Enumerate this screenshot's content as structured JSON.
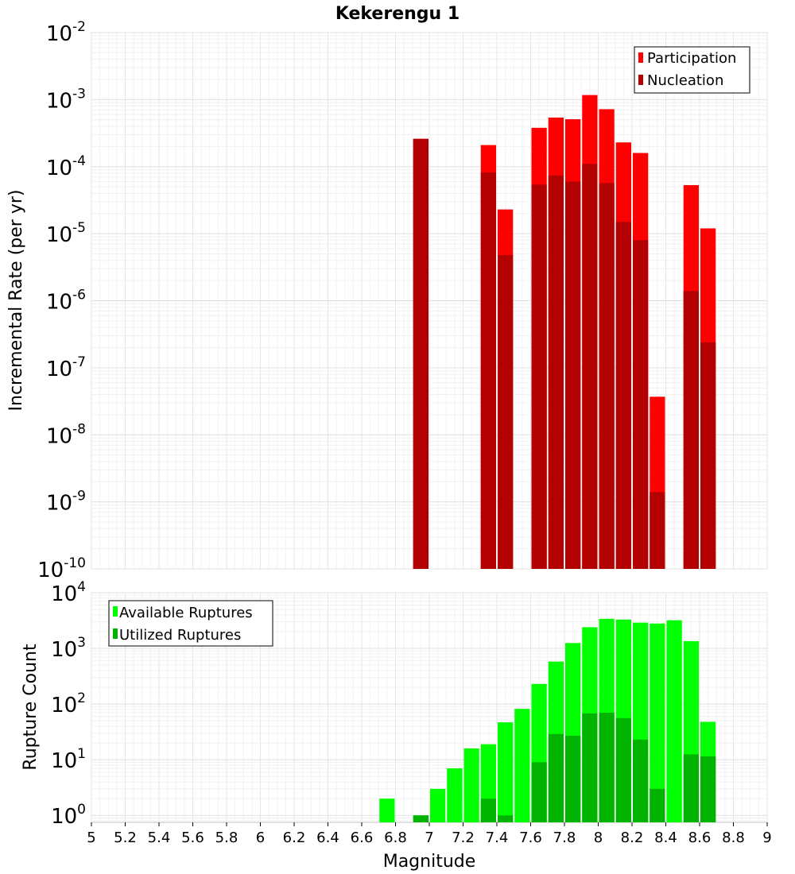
{
  "chart_data": [
    {
      "type": "bar",
      "title": "Kekerengu 1",
      "ylabel": "Incremental Rate (per yr)",
      "xlabel": "",
      "xlim": [
        5,
        9
      ],
      "ylim": [
        1e-10,
        0.01
      ],
      "yscale": "log",
      "ytick_exponents": [
        "-10",
        "-9",
        "-8",
        "-7",
        "-6",
        "-5",
        "-4",
        "-3",
        "-2"
      ],
      "ytick_base": "10",
      "grid": true,
      "legend_position": "top-right",
      "bar_width": 0.1,
      "series": [
        {
          "name": "Participation",
          "color": "#ff0000",
          "x": [
            6.95,
            7.35,
            7.45,
            7.65,
            7.75,
            7.85,
            7.95,
            8.05,
            8.15,
            8.25,
            8.35,
            8.55,
            8.65
          ],
          "values": [
            0.00026,
            0.00021,
            2.3e-05,
            0.00038,
            0.00054,
            0.00051,
            0.00117,
            0.00072,
            0.00023,
            0.00016,
            3.7e-08,
            5.3e-05,
            1.2e-05
          ]
        },
        {
          "name": "Nucleation",
          "color": "#b30000",
          "x": [
            6.95,
            7.35,
            7.45,
            7.65,
            7.75,
            7.85,
            7.95,
            8.05,
            8.15,
            8.25,
            8.35,
            8.55,
            8.65
          ],
          "values": [
            0.00026,
            8.2e-05,
            4.8e-06,
            5.4e-05,
            7.4e-05,
            6e-05,
            0.00011,
            5.7e-05,
            1.5e-05,
            8e-06,
            1.4e-09,
            1.4e-06,
            2.4e-07
          ]
        }
      ]
    },
    {
      "type": "bar",
      "title": "",
      "ylabel": "Rupture Count",
      "xlabel": "Magnitude",
      "xlim": [
        5,
        9
      ],
      "ylim": [
        0.75,
        10000
      ],
      "yscale": "log",
      "ytick_exponents": [
        "0",
        "1",
        "2",
        "3",
        "4"
      ],
      "ytick_base": "10",
      "xticks": [
        "5",
        "5.2",
        "5.4",
        "5.6",
        "5.8",
        "6",
        "6.2",
        "6.4",
        "6.6",
        "6.8",
        "7",
        "7.2",
        "7.4",
        "7.6",
        "7.8",
        "8",
        "8.2",
        "8.4",
        "8.6",
        "8.8",
        "9"
      ],
      "grid": true,
      "legend_position": "top-left",
      "bar_width": 0.1,
      "series": [
        {
          "name": "Available Ruptures",
          "color": "#00ff00",
          "x": [
            6.75,
            6.95,
            7.05,
            7.15,
            7.25,
            7.35,
            7.45,
            7.55,
            7.65,
            7.75,
            7.85,
            7.95,
            8.05,
            8.15,
            8.25,
            8.35,
            8.45,
            8.55,
            8.65
          ],
          "values": [
            2,
            1,
            3,
            7,
            16,
            19,
            47,
            82,
            230,
            580,
            1250,
            2400,
            3400,
            3300,
            2900,
            2800,
            3200,
            1350,
            48
          ]
        },
        {
          "name": "Utilized Ruptures",
          "color": "#00b300",
          "x": [
            6.95,
            7.35,
            7.45,
            7.65,
            7.75,
            7.85,
            7.95,
            8.05,
            8.15,
            8.25,
            8.35,
            8.55,
            8.65
          ],
          "values": [
            1,
            2,
            1,
            9,
            29,
            27,
            68,
            70,
            56,
            23,
            3,
            12.5,
            11.5
          ]
        }
      ]
    }
  ]
}
